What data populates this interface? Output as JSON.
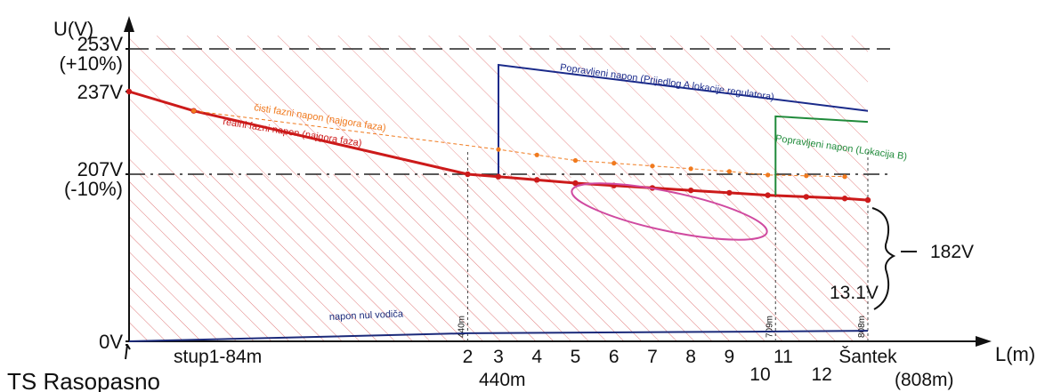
{
  "chart_data": {
    "type": "line",
    "y_axis_label": "U(V)",
    "x_axis_label": "L(m)",
    "y_ticks": [
      {
        "label": "0V",
        "value": 0
      },
      {
        "label": "207V",
        "sublabel": "(-10%)",
        "value": 207
      },
      {
        "label": "237V",
        "value": 237
      },
      {
        "label": "253V",
        "sublabel": "(+10%)",
        "value": 253
      }
    ],
    "reference_lines": [
      {
        "name": "upper-limit",
        "value": 253
      },
      {
        "name": "lower-limit",
        "value": 207
      }
    ],
    "series": [
      {
        "name": "realni fazni napon (najgora faza)",
        "color": "#cc1a1a",
        "x": [
          0,
          84,
          440,
          480,
          530,
          580,
          630,
          680,
          730,
          780,
          830,
          880,
          930,
          960
        ],
        "y": [
          237,
          230,
          207,
          204,
          200,
          196,
          193,
          190,
          187,
          184,
          181,
          179,
          177,
          175
        ]
      },
      {
        "name": "čisti fazni napon (najgora faza)",
        "color": "#f07a1e",
        "x": [
          84,
          480,
          530,
          580,
          630,
          680,
          730,
          780,
          830,
          880,
          930
        ],
        "y": [
          230,
          216,
          214,
          212,
          211,
          210,
          209,
          208,
          206,
          205,
          204
        ]
      },
      {
        "name": "napon nul vodiča",
        "color": "#1b2a7a",
        "x": [
          0,
          440,
          808,
          960
        ],
        "y": [
          0,
          10,
          12,
          13.1
        ]
      },
      {
        "name": "Popravljeni napon (Prijedlog A lokacije regulatora)",
        "color": "#1a2a8a",
        "x": [
          480,
          480,
          960
        ],
        "y": [
          207,
          247,
          230
        ]
      },
      {
        "name": "Popravljeni napon (Lokacija B)",
        "color": "#1f8a3a",
        "x": [
          840,
          840,
          960
        ],
        "y": [
          181,
          228,
          226
        ]
      }
    ],
    "x_point_labels": [
      {
        "label": "stup1-84m",
        "x": 84
      },
      {
        "label": "2",
        "x": 440
      },
      {
        "label": "3",
        "x": 480
      },
      {
        "label": "4",
        "x": 530
      },
      {
        "label": "5",
        "x": 580
      },
      {
        "label": "6",
        "x": 630
      },
      {
        "label": "7",
        "x": 680
      },
      {
        "label": "8",
        "x": 730
      },
      {
        "label": "9",
        "x": 780
      },
      {
        "label": "10",
        "x": 820
      },
      {
        "label": "11",
        "x": 850
      },
      {
        "label": "12",
        "x": 900
      },
      {
        "label": "Šantek",
        "x": 960
      }
    ],
    "vertical_markers": [
      {
        "label": "440m",
        "x": 440
      },
      {
        "label": "709m",
        "x": 840
      },
      {
        "label": "808m",
        "x": 960
      }
    ],
    "annotations": {
      "ts_label": "TS Rasopasno",
      "dist_440": "440m",
      "dist_808": "(808m)",
      "v_drop": "182V",
      "neutral_end": "13.1V"
    },
    "ylim": [
      0,
      270
    ],
    "xlim": [
      0,
      1020
    ]
  }
}
